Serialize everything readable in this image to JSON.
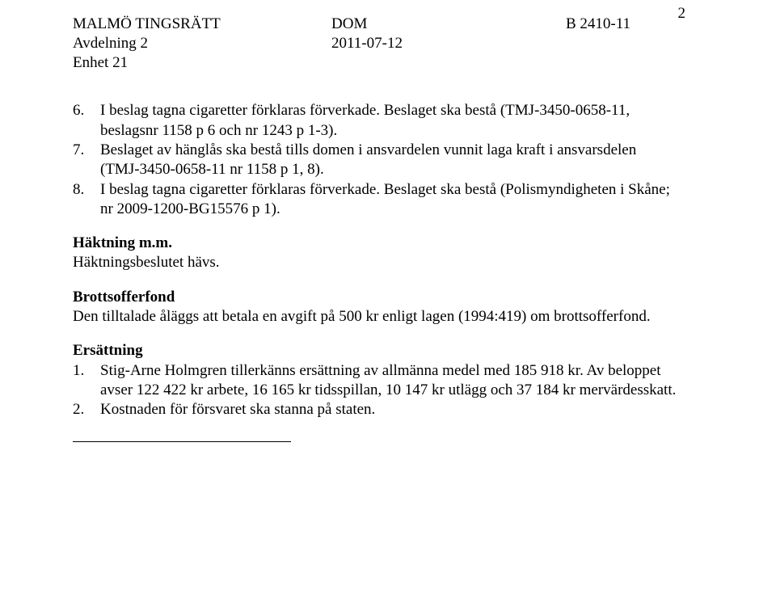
{
  "page_number": "2",
  "header": {
    "court": "MALMÖ TINGSRÄTT",
    "division": "Avdelning 2",
    "unit": "Enhet 21",
    "doc_type": "DOM",
    "date": "2011-07-12",
    "case_no": "B 2410-11"
  },
  "items_top": [
    {
      "n": "6.",
      "text": "I beslag tagna cigaretter förklaras förverkade. Beslaget ska bestå (TMJ-3450-0658-11, beslagsnr 1158 p 6 och nr 1243 p 1-3)."
    },
    {
      "n": "7.",
      "text": "Beslaget av hänglås ska bestå tills domen i ansvardelen vunnit laga kraft i ansvarsdelen (TMJ-3450-0658-11 nr 1158 p 1, 8)."
    },
    {
      "n": "8.",
      "text": "I beslag tagna cigaretter förklaras förverkade. Beslaget ska bestå (Polismyndigheten i Skåne; nr 2009-1200-BG15576 p 1)."
    }
  ],
  "haktning": {
    "head": "Häktning m.m.",
    "body": "Häktningsbeslutet hävs."
  },
  "brottsofferfond": {
    "head": "Brottsofferfond",
    "body": "Den tilltalade åläggs att betala en avgift på 500 kr enligt lagen (1994:419) om brottsofferfond."
  },
  "ersattning": {
    "head": "Ersättning",
    "items": [
      {
        "n": "1.",
        "text": "Stig-Arne Holmgren tillerkänns ersättning av allmänna medel med 185 918 kr. Av beloppet avser 122 422 kr arbete, 16 165 kr tidsspillan, 10 147 kr utlägg och 37 184 kr mervärdesskatt."
      },
      {
        "n": "2.",
        "text": "Kostnaden för försvaret ska stanna på staten."
      }
    ]
  }
}
